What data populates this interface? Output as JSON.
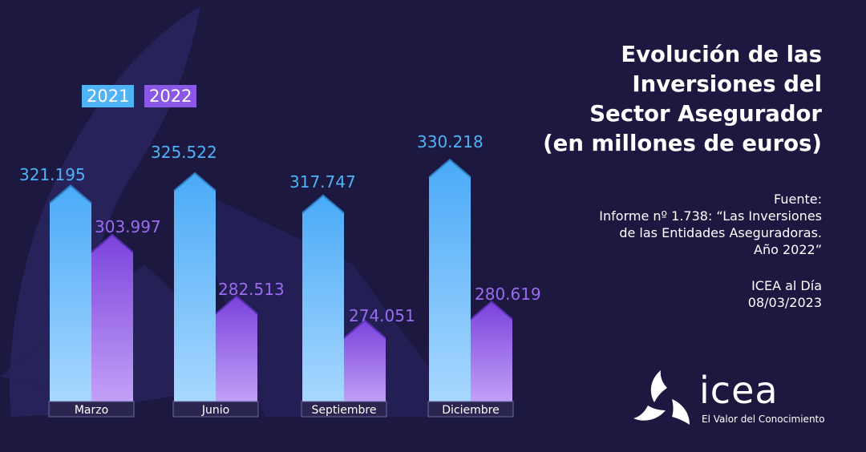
{
  "title_lines": [
    "Evolución de las",
    "Inversiones del",
    "Sector Asegurador",
    "(en millones de euros)"
  ],
  "source": {
    "lines": [
      "Fuente:",
      "Informe nº 1.738: “Las Inversiones",
      "de las Entidades Aseguradoras.",
      "Año 2022”"
    ]
  },
  "footer": {
    "line1": "ICEA al Día",
    "line2": "08/03/2023"
  },
  "logo": {
    "word": "icea",
    "tagline": "El Valor del Conocimiento",
    "icon": "triskelion-logo-icon"
  },
  "colors": {
    "background": "#1c1840",
    "series_2021": "#4fb3f5",
    "series_2022": "#8a57e6"
  },
  "chart_data": {
    "type": "bar",
    "categories": [
      "Marzo",
      "Junio",
      "Septiembre",
      "Diciembre"
    ],
    "series": [
      {
        "name": "2021",
        "values": [
          321195,
          325522,
          317747,
          330218
        ],
        "labels": [
          "321.195",
          "325.522",
          "317.747",
          "330.218"
        ]
      },
      {
        "name": "2022",
        "values": [
          303997,
          282513,
          274051,
          280619
        ],
        "labels": [
          "303.997",
          "282.513",
          "274.051",
          "280.619"
        ]
      }
    ],
    "legend": [
      "2021",
      "2022"
    ],
    "legend_placement": "top-left",
    "grid": false
  }
}
